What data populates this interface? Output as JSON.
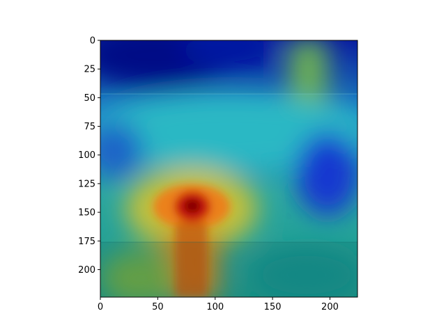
{
  "chart_data": {
    "type": "heatmap",
    "title": "",
    "xlabel": "",
    "ylabel": "",
    "xlim": [
      0,
      224
    ],
    "ylim": [
      224,
      0
    ],
    "x_ticks": [
      0,
      50,
      100,
      150,
      200
    ],
    "y_ticks": [
      0,
      25,
      50,
      75,
      100,
      125,
      150,
      175,
      200
    ],
    "image_rows_shown": [
      47,
      176
    ],
    "colormap": "jet",
    "grid": false,
    "heat_hotspots": [
      {
        "x": 80,
        "y": 148,
        "level": 1.0
      },
      {
        "x": 80,
        "y": 205,
        "level": 0.75
      },
      {
        "x": 58,
        "y": 140,
        "level": 0.7
      },
      {
        "x": 108,
        "y": 142,
        "level": 0.55
      }
    ],
    "cold_regions": [
      {
        "x": 40,
        "y": 18,
        "level": 0.0
      },
      {
        "x": 195,
        "y": 120,
        "level": 0.05
      },
      {
        "x": 10,
        "y": 95,
        "level": 0.25
      }
    ]
  }
}
